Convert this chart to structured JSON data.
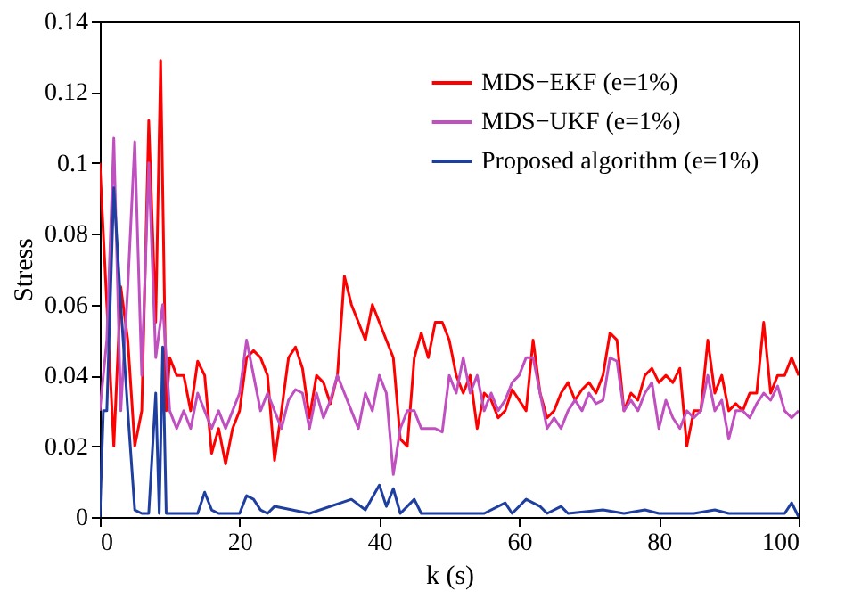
{
  "chart_data": {
    "type": "line",
    "xlabel": "k (s)",
    "ylabel": "Stress",
    "xlim": [
      0,
      100
    ],
    "xticks": [
      0,
      20,
      40,
      60,
      80,
      100
    ],
    "ylim": [
      0,
      0.14
    ],
    "yticks": [
      0,
      0.02,
      0.04,
      0.06,
      0.08,
      0.1,
      0.12,
      0.14
    ],
    "grid": false,
    "legend": "top right",
    "marker": "none",
    "line_style": "solid",
    "series": [
      {
        "name": "MDS−EKF (e=1%)",
        "color": "#ff0000",
        "x": [
          0,
          1,
          2,
          3,
          4,
          5,
          6,
          7,
          8,
          8.7,
          9.5,
          10,
          11,
          12,
          13,
          14,
          15,
          16,
          17,
          18,
          19,
          20,
          21,
          22,
          23,
          24,
          25,
          26,
          27,
          28,
          29,
          30,
          31,
          32,
          33,
          34,
          35,
          36,
          37,
          38,
          39,
          40,
          41,
          42,
          43,
          44,
          45,
          46,
          47,
          48,
          49,
          50,
          51,
          52,
          53,
          54,
          55,
          56,
          57,
          58,
          59,
          60,
          61,
          62,
          63,
          64,
          65,
          66,
          67,
          68,
          69,
          70,
          71,
          72,
          73,
          74,
          75,
          76,
          77,
          78,
          79,
          80,
          81,
          82,
          83,
          84,
          85,
          86,
          87,
          88,
          89,
          90,
          91,
          92,
          93,
          94,
          95,
          96,
          97,
          98,
          99,
          100
        ],
        "values": [
          0.1,
          0.06,
          0.02,
          0.065,
          0.05,
          0.02,
          0.03,
          0.112,
          0.055,
          0.129,
          0.03,
          0.045,
          0.04,
          0.04,
          0.03,
          0.044,
          0.04,
          0.018,
          0.025,
          0.015,
          0.025,
          0.03,
          0.045,
          0.047,
          0.045,
          0.04,
          0.016,
          0.03,
          0.045,
          0.048,
          0.042,
          0.028,
          0.04,
          0.038,
          0.032,
          0.04,
          0.068,
          0.06,
          0.055,
          0.05,
          0.06,
          0.055,
          0.05,
          0.045,
          0.022,
          0.02,
          0.045,
          0.052,
          0.045,
          0.055,
          0.055,
          0.05,
          0.04,
          0.035,
          0.04,
          0.025,
          0.035,
          0.033,
          0.028,
          0.03,
          0.036,
          0.033,
          0.03,
          0.05,
          0.035,
          0.028,
          0.03,
          0.035,
          0.038,
          0.033,
          0.036,
          0.038,
          0.035,
          0.04,
          0.052,
          0.05,
          0.03,
          0.035,
          0.033,
          0.04,
          0.042,
          0.038,
          0.04,
          0.038,
          0.042,
          0.02,
          0.03,
          0.03,
          0.05,
          0.035,
          0.04,
          0.03,
          0.032,
          0.03,
          0.035,
          0.035,
          0.055,
          0.035,
          0.04,
          0.04,
          0.045,
          0.04
        ]
      },
      {
        "name": "MDS−UKF (e=1%)",
        "color": "#c050c0",
        "x": [
          0,
          1,
          2,
          3,
          4,
          5,
          6,
          7,
          8,
          9,
          10,
          11,
          12,
          13,
          14,
          15,
          16,
          17,
          18,
          19,
          20,
          21,
          22,
          23,
          24,
          25,
          26,
          27,
          28,
          29,
          30,
          31,
          32,
          33,
          34,
          35,
          36,
          37,
          38,
          39,
          40,
          41,
          42,
          43,
          44,
          45,
          46,
          47,
          48,
          49,
          50,
          51,
          52,
          53,
          54,
          55,
          56,
          57,
          58,
          59,
          60,
          61,
          62,
          63,
          64,
          65,
          66,
          67,
          68,
          69,
          70,
          71,
          72,
          73,
          74,
          75,
          76,
          77,
          78,
          79,
          80,
          81,
          82,
          83,
          84,
          85,
          86,
          87,
          88,
          89,
          90,
          91,
          92,
          93,
          94,
          95,
          96,
          97,
          98,
          99,
          100
        ],
        "values": [
          0.03,
          0.05,
          0.107,
          0.03,
          0.065,
          0.106,
          0.04,
          0.1,
          0.045,
          0.06,
          0.03,
          0.025,
          0.03,
          0.025,
          0.035,
          0.03,
          0.025,
          0.03,
          0.025,
          0.03,
          0.035,
          0.05,
          0.04,
          0.03,
          0.035,
          0.03,
          0.025,
          0.033,
          0.036,
          0.035,
          0.025,
          0.035,
          0.028,
          0.033,
          0.04,
          0.035,
          0.03,
          0.025,
          0.035,
          0.03,
          0.04,
          0.035,
          0.012,
          0.025,
          0.03,
          0.03,
          0.025,
          0.025,
          0.025,
          0.024,
          0.04,
          0.035,
          0.045,
          0.035,
          0.04,
          0.03,
          0.035,
          0.03,
          0.033,
          0.038,
          0.04,
          0.045,
          0.045,
          0.035,
          0.025,
          0.028,
          0.025,
          0.03,
          0.033,
          0.03,
          0.035,
          0.032,
          0.033,
          0.045,
          0.044,
          0.03,
          0.033,
          0.03,
          0.035,
          0.038,
          0.025,
          0.033,
          0.028,
          0.025,
          0.03,
          0.028,
          0.03,
          0.04,
          0.03,
          0.033,
          0.022,
          0.03,
          0.03,
          0.028,
          0.032,
          0.035,
          0.033,
          0.037,
          0.03,
          0.028,
          0.03
        ]
      },
      {
        "name": "Proposed algorithm (e=1%)",
        "color": "#1f3fa0",
        "x": [
          0,
          0.5,
          1,
          2,
          3,
          4,
          5,
          6,
          7,
          8,
          8.5,
          9,
          9.5,
          10,
          14,
          15,
          16,
          17,
          20,
          21,
          22,
          23,
          24,
          25,
          30,
          36,
          38,
          40,
          41,
          42,
          43,
          45,
          46,
          55,
          58,
          59,
          61,
          63,
          64,
          66,
          67,
          72,
          75,
          78,
          80,
          85,
          88,
          90,
          98,
          99,
          100
        ],
        "values": [
          0,
          0.03,
          0.03,
          0.093,
          0.06,
          0.03,
          0.002,
          0.001,
          0.001,
          0.035,
          0.001,
          0.048,
          0.001,
          0.001,
          0.001,
          0.007,
          0.002,
          0.001,
          0.001,
          0.006,
          0.005,
          0.002,
          0.001,
          0.003,
          0.001,
          0.005,
          0.002,
          0.009,
          0.003,
          0.008,
          0.001,
          0.005,
          0.001,
          0.001,
          0.004,
          0.001,
          0.005,
          0.003,
          0.001,
          0.003,
          0.001,
          0.002,
          0.001,
          0.002,
          0.001,
          0.001,
          0.002,
          0.001,
          0.001,
          0.004,
          0
        ]
      }
    ]
  }
}
